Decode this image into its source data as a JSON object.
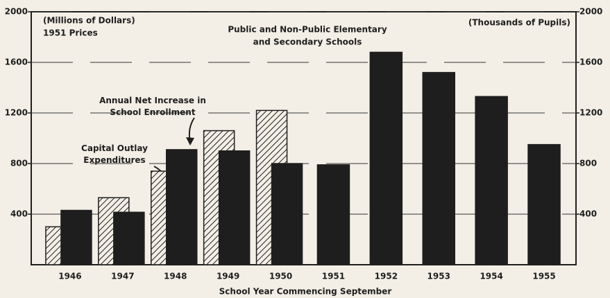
{
  "chart_data": {
    "type": "bar",
    "title": [
      "Public and Non-Public Elementary",
      "and Secondary Schools"
    ],
    "ylabel": [
      "(Millions of Dollars)",
      "1951 Prices"
    ],
    "y2label": "(Thousands of Pupils)",
    "xlabel": "School Year Commencing September",
    "categories": [
      "1946",
      "1947",
      "1948",
      "1949",
      "1950",
      "1951",
      "1952",
      "1953",
      "1954",
      "1955"
    ],
    "series": [
      {
        "name": "Capital Outlay Expenditures",
        "color": "#1e1e1e",
        "pattern": "hatch",
        "axis": "y",
        "values": [
          300,
          530,
          740,
          1060,
          1220,
          null,
          null,
          null,
          null,
          null
        ]
      },
      {
        "name": "Annual Net Increase in School Enrollment",
        "color": "#1e1e1e",
        "axis": "y2",
        "values": [
          430,
          415,
          910,
          900,
          800,
          790,
          1680,
          1520,
          1330,
          950
        ]
      }
    ],
    "ylim": [
      0,
      2000
    ],
    "yticks": [
      400,
      800,
      1200,
      1600,
      2000
    ],
    "y2lim": [
      0,
      2000
    ],
    "y2ticks": [
      400,
      800,
      1200,
      1600,
      2000
    ],
    "grid": true
  }
}
